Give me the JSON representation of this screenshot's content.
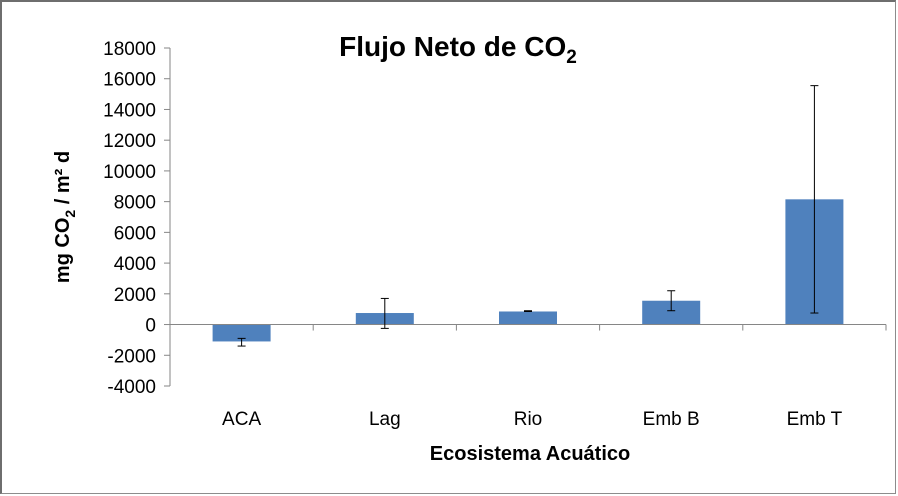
{
  "chart_data": {
    "type": "bar",
    "title": "Flujo Neto de CO",
    "title_subscript": "2",
    "xlabel": "Ecosistema Acuático",
    "ylabel_parts": [
      "mg CO",
      "2",
      " / m² d"
    ],
    "categories": [
      "ACA",
      "Lag",
      "Rio",
      "Emb B",
      "Emb T"
    ],
    "values": [
      -1100,
      750,
      850,
      1550,
      8150
    ],
    "error_low": [
      -1400,
      -250,
      850,
      900,
      750
    ],
    "error_high": [
      -900,
      1700,
      900,
      2200,
      15550
    ],
    "ylim": [
      -4000,
      18000
    ],
    "yticks": [
      -4000,
      -2000,
      0,
      2000,
      4000,
      6000,
      8000,
      10000,
      12000,
      14000,
      16000,
      18000
    ],
    "ytick_labels": [
      "-4000",
      "-2000",
      "0",
      "2000",
      "4000",
      "6000",
      "8000",
      "10000",
      "12000",
      "14000",
      "16000",
      "18000"
    ],
    "grid": false,
    "legend": "none",
    "bar_color": "#4f81bd"
  }
}
